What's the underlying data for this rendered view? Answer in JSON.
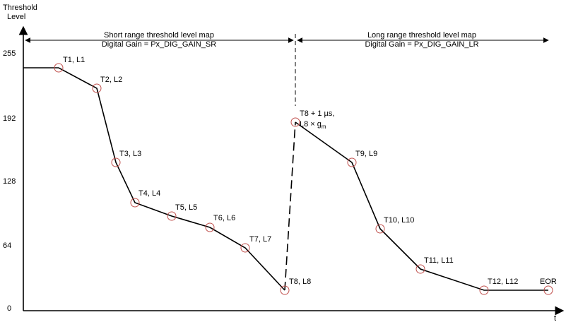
{
  "axes": {
    "y_title_line1": "Threshold",
    "y_title_line2": "Level",
    "x_title": "t",
    "y_ticks": [
      "255",
      "192",
      "128",
      "64",
      "0"
    ]
  },
  "regions": {
    "short": {
      "line1": "Short range threshold level map",
      "line2": "Digital Gain = Px_DIG_GAIN_SR"
    },
    "long": {
      "line1": "Long range threshold level map",
      "line2": "Digital Gain = Px_DIG_GAIN_LR"
    }
  },
  "points": [
    {
      "label": "T1, L1"
    },
    {
      "label": "T2, L2"
    },
    {
      "label": "T3, L3"
    },
    {
      "label": "T4, L4"
    },
    {
      "label": "T5, L5"
    },
    {
      "label": "T6, L6"
    },
    {
      "label": "T7, L7"
    },
    {
      "label": "T8, L8"
    },
    {
      "label_line1": "T8 + 1 µs,",
      "label_line2": "L8 × g",
      "label_sub": "m"
    },
    {
      "label": "T9, L9"
    },
    {
      "label": "T10, L10"
    },
    {
      "label": "T11, L11"
    },
    {
      "label": "T12, L12"
    },
    {
      "label": "EOR"
    }
  ]
}
